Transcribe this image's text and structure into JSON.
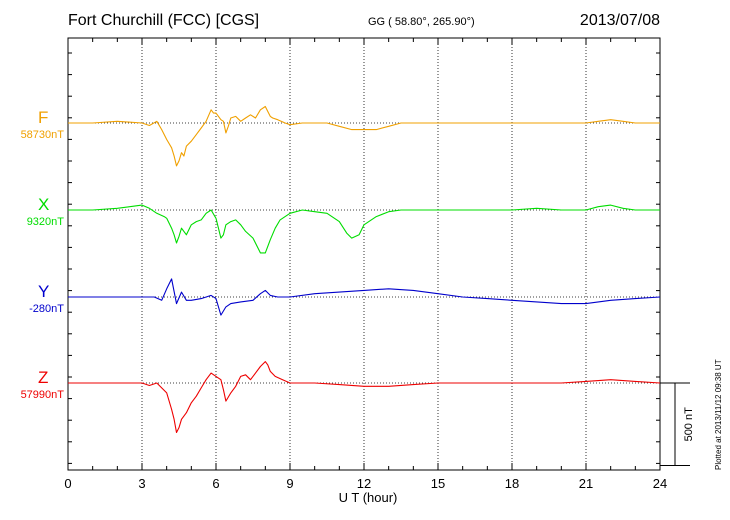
{
  "header": {
    "station": "Fort Churchill (FCC)  [CGS]",
    "coords": "GG ( 58.80°, 265.90°)",
    "date": "2013/07/08"
  },
  "plotted_note": "Plotted at 2013/11/12 09:38 UT",
  "scale_label": "500 nT",
  "chart_data": {
    "type": "line",
    "xlabel": "U T (hour)",
    "xlim": [
      0,
      24
    ],
    "xticks": [
      "0",
      "3",
      "6",
      "9",
      "12",
      "15",
      "18",
      "21",
      "24"
    ],
    "yunit": "nT",
    "scale_bar_nT": 500,
    "grid": true,
    "series": [
      {
        "name": "F",
        "baseline_label": "58730nT",
        "color": "#f0a000",
        "baseline": 58730,
        "x": [
          0,
          1,
          2,
          3,
          3.3,
          3.6,
          3.8,
          4.0,
          4.2,
          4.3,
          4.4,
          4.5,
          4.6,
          4.7,
          4.8,
          5.0,
          5.2,
          5.4,
          5.6,
          5.8,
          5.9,
          6.0,
          6.2,
          6.3,
          6.4,
          6.5,
          6.6,
          6.8,
          7.0,
          7.2,
          7.4,
          7.6,
          7.8,
          8.0,
          8.1,
          8.2,
          8.3,
          8.5,
          8.8,
          9.0,
          9.5,
          10,
          10.5,
          11,
          11.5,
          12,
          12.5,
          13,
          13.5,
          14,
          15,
          16,
          17,
          18,
          19,
          20,
          21,
          21.5,
          22,
          22.5,
          23,
          24
        ],
        "y": [
          0,
          0,
          10,
          0,
          -15,
          10,
          -40,
          -100,
          -150,
          -200,
          -260,
          -230,
          -180,
          -200,
          -140,
          -110,
          -70,
          -30,
          10,
          80,
          60,
          60,
          20,
          10,
          -60,
          -20,
          30,
          40,
          10,
          30,
          50,
          30,
          80,
          100,
          70,
          40,
          30,
          20,
          0,
          -10,
          0,
          0,
          0,
          -20,
          -40,
          -40,
          -40,
          -20,
          0,
          0,
          0,
          0,
          0,
          0,
          0,
          0,
          0,
          10,
          20,
          10,
          0,
          0
        ]
      },
      {
        "name": "X",
        "baseline_label": "9320nT",
        "color": "#00dd00",
        "baseline": 9320,
        "x": [
          0,
          1,
          2,
          3,
          3.3,
          3.6,
          3.9,
          4.0,
          4.2,
          4.3,
          4.4,
          4.5,
          4.6,
          4.8,
          5.0,
          5.2,
          5.4,
          5.6,
          5.8,
          6.0,
          6.2,
          6.3,
          6.4,
          6.6,
          6.8,
          7.0,
          7.2,
          7.5,
          7.8,
          8.0,
          8.2,
          8.4,
          8.6,
          9.0,
          9.5,
          10,
          10.5,
          11,
          11.3,
          11.5,
          11.8,
          12,
          12.5,
          13,
          13.5,
          14,
          15,
          16,
          17,
          18,
          19,
          20,
          21,
          21.5,
          22,
          22.5,
          23,
          24
        ],
        "y": [
          0,
          0,
          10,
          30,
          10,
          -20,
          -40,
          -50,
          -110,
          -150,
          -200,
          -160,
          -110,
          -150,
          -90,
          -70,
          -60,
          -20,
          0,
          -50,
          -170,
          -150,
          -90,
          -70,
          -60,
          -90,
          -130,
          -170,
          -260,
          -260,
          -180,
          -110,
          -60,
          -20,
          0,
          -10,
          -20,
          -70,
          -140,
          -170,
          -150,
          -90,
          -40,
          -10,
          0,
          0,
          0,
          0,
          0,
          0,
          10,
          0,
          0,
          20,
          30,
          10,
          0,
          0
        ]
      },
      {
        "name": "Y",
        "baseline_label": "-280nT",
        "color": "#0000cc",
        "baseline": -280,
        "x": [
          0,
          1,
          2,
          3,
          3.5,
          3.8,
          4.0,
          4.2,
          4.4,
          4.6,
          4.8,
          5.0,
          5.4,
          5.8,
          6.0,
          6.2,
          6.4,
          6.6,
          7.0,
          7.5,
          7.8,
          8.0,
          8.2,
          8.5,
          9.0,
          10,
          11,
          12,
          13,
          14,
          15,
          16,
          17,
          18,
          19,
          20,
          21,
          22,
          23,
          24
        ],
        "y": [
          0,
          0,
          0,
          0,
          0,
          -20,
          50,
          110,
          -40,
          30,
          -20,
          -20,
          -10,
          10,
          -10,
          -110,
          -60,
          -40,
          -30,
          -20,
          20,
          40,
          10,
          0,
          0,
          20,
          30,
          40,
          50,
          40,
          20,
          0,
          -10,
          -20,
          -30,
          -40,
          -40,
          -20,
          -10,
          0
        ]
      },
      {
        "name": "Z",
        "baseline_label": "57990nT",
        "color": "#ee0000",
        "baseline": 57990,
        "x": [
          0,
          1,
          2,
          3,
          3.3,
          3.6,
          3.8,
          4.0,
          4.2,
          4.3,
          4.4,
          4.5,
          4.6,
          4.8,
          5.0,
          5.2,
          5.4,
          5.6,
          5.8,
          6.0,
          6.2,
          6.3,
          6.4,
          6.6,
          6.8,
          7.0,
          7.2,
          7.4,
          7.6,
          7.8,
          8.0,
          8.1,
          8.2,
          8.4,
          8.7,
          9.0,
          9.5,
          10,
          11,
          12,
          13,
          14,
          15,
          16,
          17,
          18,
          19,
          20,
          21,
          22,
          23,
          24
        ],
        "y": [
          0,
          0,
          0,
          0,
          -15,
          0,
          -30,
          -60,
          -160,
          -220,
          -300,
          -270,
          -220,
          -180,
          -120,
          -80,
          -30,
          20,
          60,
          40,
          20,
          -40,
          -110,
          -60,
          -20,
          40,
          50,
          20,
          60,
          100,
          130,
          110,
          70,
          40,
          20,
          0,
          0,
          0,
          -10,
          -20,
          -20,
          -10,
          0,
          0,
          0,
          0,
          0,
          0,
          10,
          20,
          10,
          0
        ]
      }
    ]
  }
}
